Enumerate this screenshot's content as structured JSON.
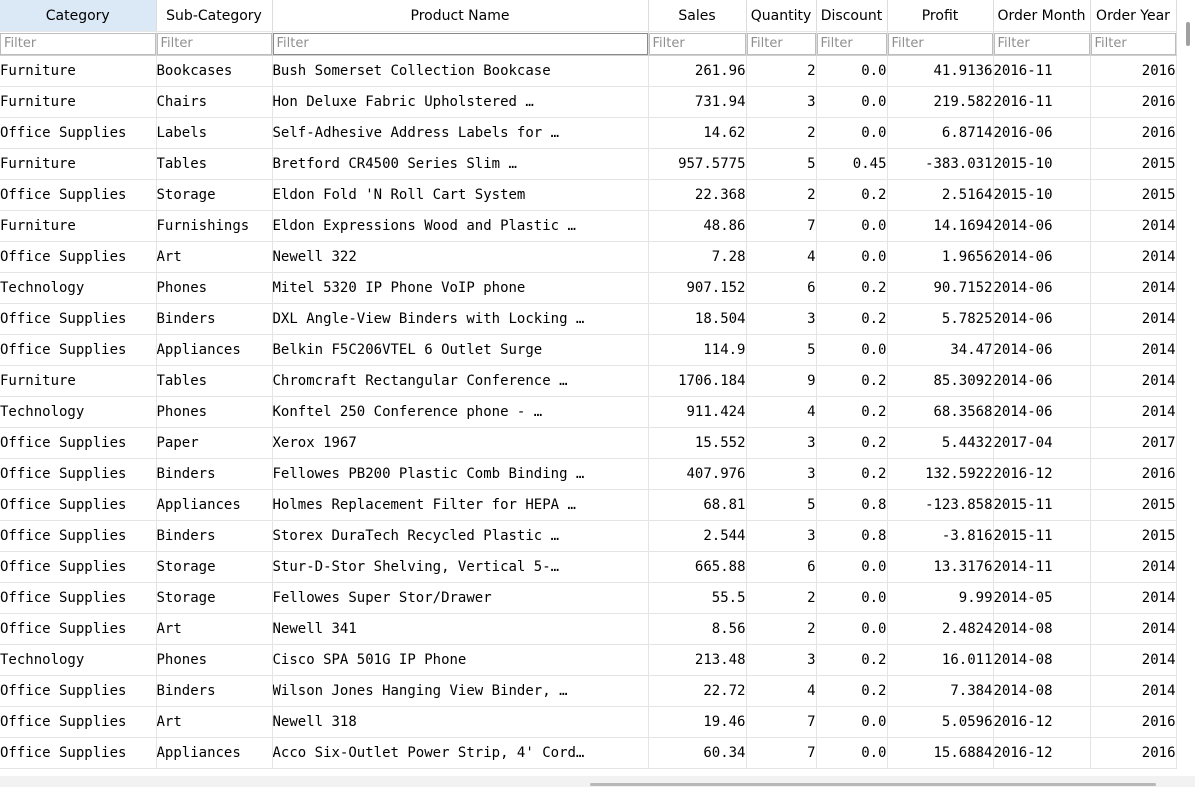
{
  "columns": [
    {
      "label": "Category",
      "filter": "Filter"
    },
    {
      "label": "Sub-Category",
      "filter": "Filter"
    },
    {
      "label": "Product Name",
      "filter": "Filter"
    },
    {
      "label": "Sales",
      "filter": "Filter"
    },
    {
      "label": "Quantity",
      "filter": "Filter"
    },
    {
      "label": "Discount",
      "filter": "Filter"
    },
    {
      "label": "Profit",
      "filter": "Filter"
    },
    {
      "label": "Order Month",
      "filter": "Filter"
    },
    {
      "label": "Order Year",
      "filter": "Filter"
    }
  ],
  "rows": [
    [
      "Furniture",
      "Bookcases",
      "Bush Somerset Collection Bookcase",
      "261.96",
      "2",
      "0.0",
      "41.9136",
      "2016-11",
      "2016"
    ],
    [
      "Furniture",
      "Chairs",
      "Hon Deluxe Fabric Upholstered …",
      "731.94",
      "3",
      "0.0",
      "219.582",
      "2016-11",
      "2016"
    ],
    [
      "Office Supplies",
      "Labels",
      "Self-Adhesive Address Labels for …",
      "14.62",
      "2",
      "0.0",
      "6.8714",
      "2016-06",
      "2016"
    ],
    [
      "Furniture",
      "Tables",
      "Bretford CR4500 Series Slim …",
      "957.5775",
      "5",
      "0.45",
      "-383.031",
      "2015-10",
      "2015"
    ],
    [
      "Office Supplies",
      "Storage",
      "Eldon Fold 'N Roll Cart System",
      "22.368",
      "2",
      "0.2",
      "2.5164",
      "2015-10",
      "2015"
    ],
    [
      "Furniture",
      "Furnishings",
      "Eldon Expressions Wood and Plastic …",
      "48.86",
      "7",
      "0.0",
      "14.1694",
      "2014-06",
      "2014"
    ],
    [
      "Office Supplies",
      "Art",
      "Newell 322",
      "7.28",
      "4",
      "0.0",
      "1.9656",
      "2014-06",
      "2014"
    ],
    [
      "Technology",
      "Phones",
      "Mitel 5320 IP Phone VoIP phone",
      "907.152",
      "6",
      "0.2",
      "90.7152",
      "2014-06",
      "2014"
    ],
    [
      "Office Supplies",
      "Binders",
      "DXL Angle-View Binders with Locking …",
      "18.504",
      "3",
      "0.2",
      "5.7825",
      "2014-06",
      "2014"
    ],
    [
      "Office Supplies",
      "Appliances",
      "Belkin F5C206VTEL 6 Outlet Surge",
      "114.9",
      "5",
      "0.0",
      "34.47",
      "2014-06",
      "2014"
    ],
    [
      "Furniture",
      "Tables",
      "Chromcraft Rectangular Conference …",
      "1706.184",
      "9",
      "0.2",
      "85.3092",
      "2014-06",
      "2014"
    ],
    [
      "Technology",
      "Phones",
      "Konftel 250 Conference phone - …",
      "911.424",
      "4",
      "0.2",
      "68.3568",
      "2014-06",
      "2014"
    ],
    [
      "Office Supplies",
      "Paper",
      "Xerox 1967",
      "15.552",
      "3",
      "0.2",
      "5.4432",
      "2017-04",
      "2017"
    ],
    [
      "Office Supplies",
      "Binders",
      "Fellowes PB200 Plastic Comb Binding …",
      "407.976",
      "3",
      "0.2",
      "132.5922",
      "2016-12",
      "2016"
    ],
    [
      "Office Supplies",
      "Appliances",
      "Holmes Replacement Filter for HEPA …",
      "68.81",
      "5",
      "0.8",
      "-123.858",
      "2015-11",
      "2015"
    ],
    [
      "Office Supplies",
      "Binders",
      "Storex DuraTech Recycled Plastic …",
      "2.544",
      "3",
      "0.8",
      "-3.816",
      "2015-11",
      "2015"
    ],
    [
      "Office Supplies",
      "Storage",
      "Stur-D-Stor Shelving, Vertical 5-…",
      "665.88",
      "6",
      "0.0",
      "13.3176",
      "2014-11",
      "2014"
    ],
    [
      "Office Supplies",
      "Storage",
      "Fellowes Super Stor/Drawer",
      "55.5",
      "2",
      "0.0",
      "9.99",
      "2014-05",
      "2014"
    ],
    [
      "Office Supplies",
      "Art",
      "Newell 341",
      "8.56",
      "2",
      "0.0",
      "2.4824",
      "2014-08",
      "2014"
    ],
    [
      "Technology",
      "Phones",
      "Cisco SPA 501G IP Phone",
      "213.48",
      "3",
      "0.2",
      "16.011",
      "2014-08",
      "2014"
    ],
    [
      "Office Supplies",
      "Binders",
      "Wilson Jones Hanging View Binder, …",
      "22.72",
      "4",
      "0.2",
      "7.384",
      "2014-08",
      "2014"
    ],
    [
      "Office Supplies",
      "Art",
      "Newell 318",
      "19.46",
      "7",
      "0.0",
      "5.0596",
      "2016-12",
      "2016"
    ],
    [
      "Office Supplies",
      "Appliances",
      "Acco Six-Outlet Power Strip, 4' Cord…",
      "60.34",
      "7",
      "0.0",
      "15.6884",
      "2016-12",
      "2016"
    ]
  ]
}
